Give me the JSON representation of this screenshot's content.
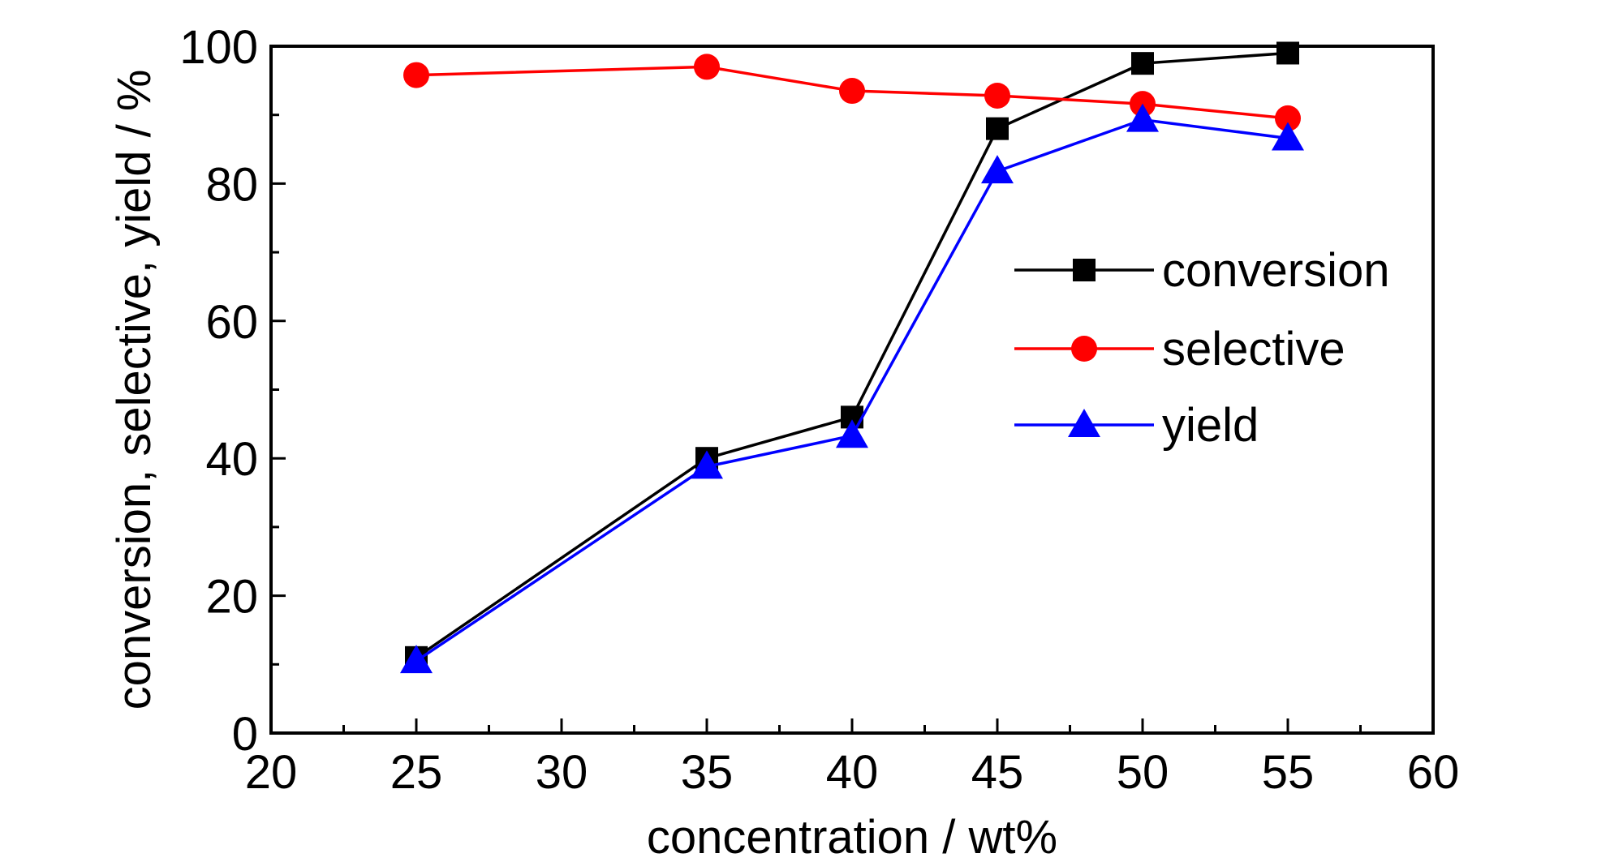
{
  "chart_data": {
    "type": "line",
    "title": "",
    "xlabel": "concentration / wt%",
    "ylabel": "conversion, selective, yield / %",
    "xlim": [
      20,
      60
    ],
    "ylim": [
      0,
      100
    ],
    "x_ticks": [
      20,
      25,
      30,
      35,
      40,
      45,
      50,
      55,
      60
    ],
    "y_ticks": [
      0,
      20,
      40,
      60,
      80,
      100
    ],
    "grid": false,
    "legend_position": "right",
    "x": [
      25,
      35,
      40,
      45,
      50,
      55
    ],
    "series": [
      {
        "name": "conversion",
        "color": "#000000",
        "marker": "square",
        "values": [
          11,
          40,
          46,
          88,
          97.5,
          99
        ]
      },
      {
        "name": "selective",
        "color": "#ff0000",
        "marker": "circle",
        "values": [
          95.8,
          97,
          93.5,
          92.8,
          91.6,
          89.5
        ]
      },
      {
        "name": "yield",
        "color": "#0000ff",
        "marker": "triangle",
        "values": [
          10.5,
          38.8,
          43.3,
          81.8,
          89.3,
          86.6
        ]
      }
    ]
  }
}
